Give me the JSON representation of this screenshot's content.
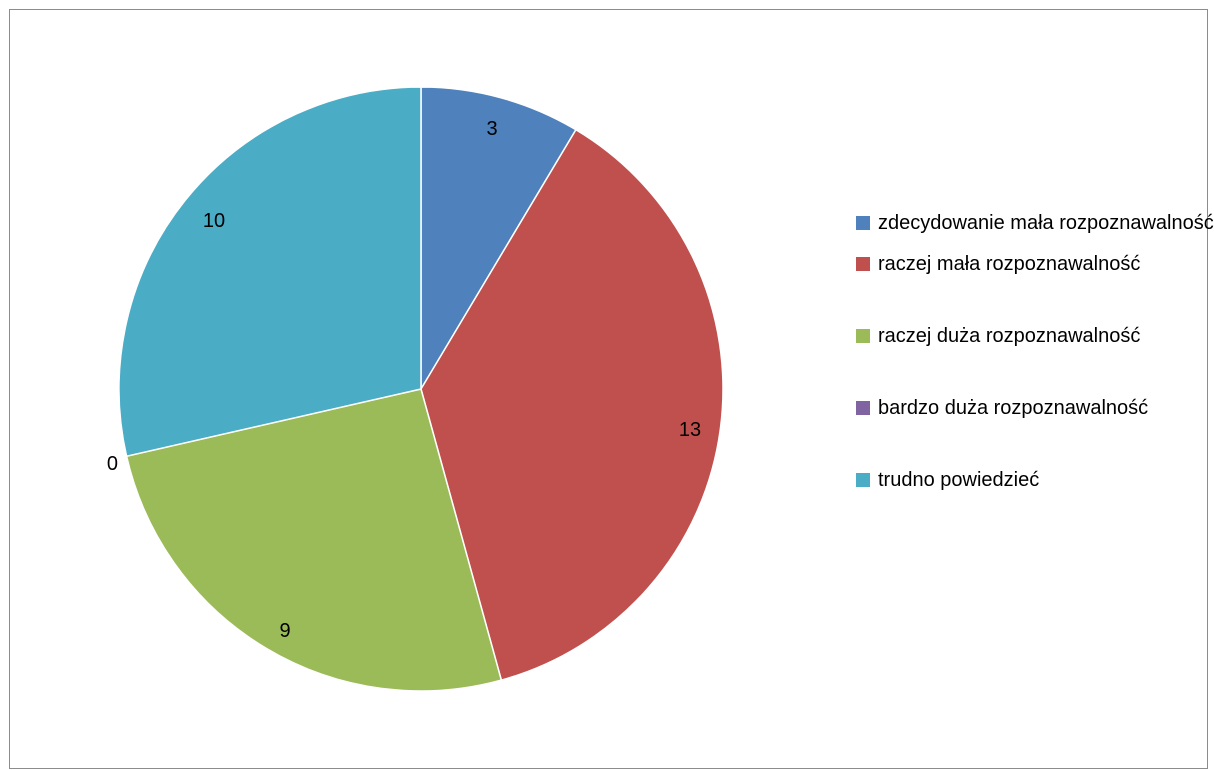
{
  "chart_data": {
    "type": "pie",
    "categories": [
      "zdecydowanie mała rozpoznawalność",
      "raczej mała rozpoznawalność",
      "raczej duża rozpoznawalność",
      "bardzo duża rozpoznawalność",
      "trudno powiedzieć"
    ],
    "values": [
      3,
      13,
      9,
      0,
      10
    ],
    "data_labels": [
      "3",
      "13",
      "9",
      "0",
      "10"
    ],
    "colors": [
      "#4f81bd",
      "#c0504d",
      "#9bbb59",
      "#8064a2",
      "#4bacc6"
    ],
    "start_angle_deg": 0,
    "direction": "clockwise",
    "legend_position": "right"
  }
}
